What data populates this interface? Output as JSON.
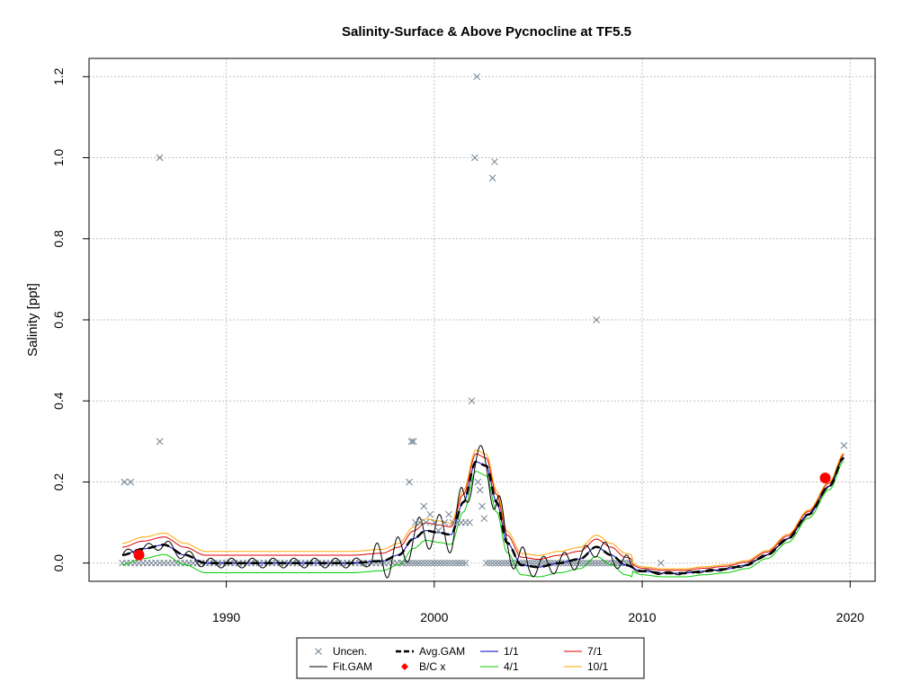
{
  "chart_data": {
    "type": "line",
    "title": "Salinity-Surface & Above Pycnocline at TF5.5",
    "xlabel": "",
    "ylabel": "Salinity [ppt]",
    "xlim": [
      1983.4,
      2021.2
    ],
    "ylim": [
      -0.045,
      1.245
    ],
    "x_ticks": [
      1990,
      2000,
      2010,
      2020
    ],
    "y_ticks": [
      0.0,
      0.2,
      0.4,
      0.6,
      0.8,
      1.0,
      1.2
    ],
    "x_tick_labels": [
      "1990",
      "2000",
      "2010",
      "2020"
    ],
    "y_tick_labels": [
      "0.0",
      "0.2",
      "0.4",
      "0.6",
      "0.8",
      "1.0",
      "1.2"
    ],
    "grid": true,
    "colors": {
      "uncen": "#708090",
      "fit_gam": "#000000",
      "avg_gam": "#000000",
      "bc": "#ff0000",
      "s1": "#0000cd",
      "s4": "#00cc00",
      "s7": "#dd0000",
      "s10": "#ffa500"
    },
    "legend": {
      "position": "bottom",
      "entries": [
        {
          "key": "uncen",
          "label": "Uncen.",
          "style": "cross"
        },
        {
          "key": "avg_gam",
          "label": "Avg.GAM",
          "style": "dashed"
        },
        {
          "key": "s1",
          "label": "1/1",
          "style": "line"
        },
        {
          "key": "s7",
          "label": "7/1",
          "style": "line"
        },
        {
          "key": "fit_gam",
          "label": "Fit.GAM",
          "style": "line"
        },
        {
          "key": "bc",
          "label": "B/C x",
          "style": "diamond"
        },
        {
          "key": "s4",
          "label": "4/1",
          "style": "line"
        },
        {
          "key": "s10",
          "label": "10/1",
          "style": "line"
        }
      ]
    },
    "baseline_points": {
      "y": 0.0,
      "ranges": [
        [
          1985.0,
          1998.5,
          0.2
        ],
        [
          1998.5,
          2001.6,
          0.15
        ],
        [
          2002.5,
          2009.5,
          0.15
        ]
      ],
      "extra_x": [
        2010.9
      ]
    },
    "points": [
      [
        1985.1,
        0.2
      ],
      [
        1985.4,
        0.2
      ],
      [
        1986.8,
        1.0
      ],
      [
        1986.8,
        0.3
      ],
      [
        1998.8,
        0.2
      ],
      [
        1998.9,
        0.3
      ],
      [
        1999.0,
        0.3
      ],
      [
        1999.1,
        0.1
      ],
      [
        1999.3,
        0.1
      ],
      [
        1999.5,
        0.14
      ],
      [
        1999.6,
        0.1
      ],
      [
        1999.8,
        0.12
      ],
      [
        2000.0,
        0.1
      ],
      [
        2000.2,
        0.08
      ],
      [
        2000.5,
        0.1
      ],
      [
        2000.7,
        0.12
      ],
      [
        2000.9,
        0.1
      ],
      [
        2001.1,
        0.1
      ],
      [
        2001.3,
        0.1
      ],
      [
        2001.5,
        0.1
      ],
      [
        2001.7,
        0.1
      ],
      [
        2001.8,
        0.4
      ],
      [
        2001.95,
        1.0
      ],
      [
        2002.05,
        1.2
      ],
      [
        2002.1,
        0.2
      ],
      [
        2002.2,
        0.18
      ],
      [
        2002.3,
        0.14
      ],
      [
        2002.4,
        0.11
      ],
      [
        2002.8,
        0.95
      ],
      [
        2002.9,
        0.99
      ],
      [
        2007.8,
        0.6
      ],
      [
        2019.7,
        0.29
      ]
    ],
    "bc_points": [
      [
        1985.8,
        0.02
      ],
      [
        2018.8,
        0.21
      ]
    ],
    "avg_gam": {
      "x": [
        1985.0,
        1986.0,
        1987.0,
        1988.0,
        1989.0,
        1990.0,
        1992.0,
        1994.0,
        1996.0,
        1997.5,
        1998.3,
        1999.0,
        1999.6,
        2000.2,
        2000.8,
        2001.4,
        2002.0,
        2002.5,
        2003.0,
        2003.5,
        2004.2,
        2005.0,
        2006.0,
        2007.0,
        2007.8,
        2008.5,
        2009.2,
        2010.0,
        2011.0,
        2012.0,
        2013.0,
        2014.0,
        2015.0,
        2016.0,
        2017.0,
        2018.0,
        2019.0,
        2019.7
      ],
      "y": [
        0.02,
        0.035,
        0.045,
        0.02,
        0.0,
        0.0,
        0.0,
        0.0,
        0.0,
        0.005,
        0.02,
        0.06,
        0.08,
        0.075,
        0.07,
        0.15,
        0.25,
        0.24,
        0.15,
        0.05,
        -0.005,
        -0.01,
        0.0,
        0.01,
        0.04,
        0.02,
        -0.005,
        -0.02,
        -0.025,
        -0.025,
        -0.02,
        -0.015,
        -0.005,
        0.02,
        0.06,
        0.12,
        0.19,
        0.26
      ]
    },
    "series": [
      {
        "key": "s1",
        "name": "1/1",
        "offset": 0.0
      },
      {
        "key": "s4",
        "name": "4/1",
        "offset": -0.015
      },
      {
        "key": "s7",
        "name": "7/1",
        "offset": 0.012
      },
      {
        "key": "s10",
        "name": "10/1",
        "offset": 0.018
      }
    ]
  }
}
